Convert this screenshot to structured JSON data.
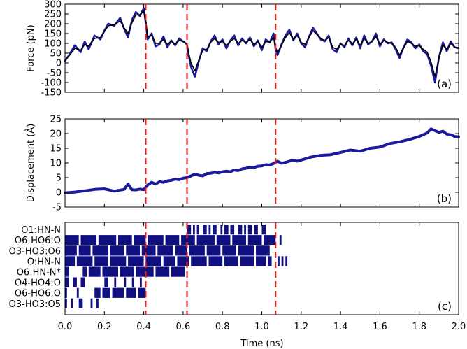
{
  "colors": {
    "raw": "#1a1a9c",
    "smooth": "#000000",
    "marker": "#e8231c",
    "hbond": "#101080",
    "frame": "#000000"
  },
  "x_axis": {
    "label": "Time (ns)",
    "range": [
      0.0,
      2.0
    ],
    "ticks": [
      "0.0",
      "0.2",
      "0.4",
      "0.6",
      "0.8",
      "1.0",
      "1.2",
      "1.4",
      "1.6",
      "1.8",
      "2.0"
    ]
  },
  "event_times": [
    0.41,
    0.62,
    1.07
  ],
  "chart_data": [
    {
      "id": "a",
      "tag": "(a)",
      "type": "line",
      "ylabel": "Force (pN)",
      "ylim": [
        -150,
        300
      ],
      "yticks": [
        "-150",
        "-100",
        "-50",
        "0",
        "50",
        "100",
        "150",
        "200",
        "250",
        "300"
      ],
      "series": [
        {
          "style": "raw",
          "x": [
            0.0,
            0.02,
            0.05,
            0.08,
            0.1,
            0.12,
            0.15,
            0.18,
            0.2,
            0.22,
            0.25,
            0.28,
            0.3,
            0.32,
            0.34,
            0.36,
            0.38,
            0.4,
            0.41,
            0.42,
            0.44,
            0.46,
            0.48,
            0.5,
            0.52,
            0.54,
            0.56,
            0.58,
            0.6,
            0.62,
            0.63,
            0.64,
            0.66,
            0.68,
            0.7,
            0.72,
            0.74,
            0.76,
            0.78,
            0.8,
            0.82,
            0.84,
            0.86,
            0.88,
            0.9,
            0.92,
            0.94,
            0.96,
            0.98,
            1.0,
            1.02,
            1.04,
            1.06,
            1.07,
            1.08,
            1.1,
            1.12,
            1.14,
            1.16,
            1.18,
            1.2,
            1.22,
            1.24,
            1.26,
            1.28,
            1.3,
            1.32,
            1.34,
            1.36,
            1.38,
            1.4,
            1.42,
            1.44,
            1.46,
            1.48,
            1.5,
            1.52,
            1.54,
            1.56,
            1.58,
            1.6,
            1.62,
            1.64,
            1.66,
            1.68,
            1.7,
            1.72,
            1.74,
            1.76,
            1.78,
            1.8,
            1.82,
            1.84,
            1.86,
            1.88,
            1.9,
            1.92,
            1.94,
            1.96,
            1.98,
            2.0
          ],
          "y": [
            10,
            40,
            90,
            55,
            110,
            70,
            140,
            120,
            165,
            200,
            190,
            230,
            175,
            130,
            220,
            260,
            240,
            280,
            205,
            120,
            150,
            85,
            95,
            135,
            80,
            115,
            90,
            125,
            110,
            95,
            30,
            -20,
            -70,
            10,
            75,
            60,
            110,
            140,
            95,
            120,
            75,
            115,
            140,
            90,
            125,
            100,
            130,
            85,
            115,
            65,
            120,
            105,
            150,
            70,
            40,
            95,
            140,
            170,
            115,
            150,
            100,
            80,
            135,
            180,
            150,
            120,
            110,
            140,
            70,
            55,
            100,
            80,
            125,
            90,
            130,
            75,
            140,
            95,
            110,
            150,
            85,
            120,
            100,
            105,
            70,
            25,
            80,
            120,
            105,
            75,
            95,
            60,
            45,
            -15,
            -100,
            30,
            105,
            60,
            110,
            80,
            75
          ]
        },
        {
          "style": "smooth",
          "x": [
            0.0,
            0.02,
            0.05,
            0.08,
            0.1,
            0.12,
            0.15,
            0.18,
            0.2,
            0.22,
            0.25,
            0.28,
            0.3,
            0.32,
            0.34,
            0.36,
            0.38,
            0.4,
            0.41,
            0.42,
            0.44,
            0.46,
            0.48,
            0.5,
            0.52,
            0.54,
            0.56,
            0.58,
            0.6,
            0.62,
            0.63,
            0.64,
            0.66,
            0.68,
            0.7,
            0.72,
            0.74,
            0.76,
            0.78,
            0.8,
            0.82,
            0.84,
            0.86,
            0.88,
            0.9,
            0.92,
            0.94,
            0.96,
            0.98,
            1.0,
            1.02,
            1.04,
            1.06,
            1.07,
            1.08,
            1.1,
            1.12,
            1.14,
            1.16,
            1.18,
            1.2,
            1.22,
            1.24,
            1.26,
            1.28,
            1.3,
            1.32,
            1.34,
            1.36,
            1.38,
            1.4,
            1.42,
            1.44,
            1.46,
            1.48,
            1.5,
            1.52,
            1.54,
            1.56,
            1.58,
            1.6,
            1.62,
            1.64,
            1.66,
            1.68,
            1.7,
            1.72,
            1.74,
            1.76,
            1.78,
            1.8,
            1.82,
            1.84,
            1.86,
            1.88,
            1.9,
            1.92,
            1.94,
            1.96,
            1.98,
            2.0
          ],
          "y": [
            15,
            35,
            75,
            65,
            95,
            85,
            125,
            130,
            160,
            190,
            195,
            215,
            180,
            150,
            205,
            245,
            245,
            265,
            215,
            135,
            140,
            100,
            100,
            120,
            95,
            110,
            95,
            115,
            110,
            95,
            45,
            0,
            -40,
            15,
            65,
            70,
            105,
            125,
            105,
            110,
            90,
            110,
            125,
            100,
            115,
            105,
            120,
            95,
            110,
            80,
            110,
            105,
            130,
            80,
            55,
            90,
            130,
            155,
            120,
            140,
            105,
            95,
            130,
            165,
            145,
            125,
            115,
            130,
            80,
            70,
            95,
            90,
            115,
            95,
            120,
            90,
            125,
            100,
            110,
            135,
            95,
            115,
            105,
            100,
            80,
            40,
            75,
            110,
            100,
            85,
            90,
            70,
            55,
            5,
            -70,
            25,
            90,
            70,
            100,
            80,
            78
          ]
        }
      ]
    },
    {
      "id": "b",
      "tag": "(b)",
      "type": "line",
      "ylabel": "Displacement (Å)",
      "ylim": [
        -5,
        25
      ],
      "yticks": [
        "-5",
        "0",
        "5",
        "10",
        "15",
        "20",
        "25"
      ],
      "series": [
        {
          "style": "raw",
          "x": [
            0.0,
            0.05,
            0.1,
            0.15,
            0.2,
            0.25,
            0.3,
            0.32,
            0.34,
            0.36,
            0.38,
            0.4,
            0.42,
            0.44,
            0.46,
            0.48,
            0.5,
            0.52,
            0.54,
            0.56,
            0.58,
            0.6,
            0.62,
            0.64,
            0.66,
            0.68,
            0.7,
            0.72,
            0.74,
            0.76,
            0.78,
            0.8,
            0.82,
            0.84,
            0.86,
            0.88,
            0.9,
            0.92,
            0.94,
            0.96,
            0.98,
            1.0,
            1.02,
            1.04,
            1.06,
            1.08,
            1.1,
            1.12,
            1.14,
            1.16,
            1.18,
            1.2,
            1.25,
            1.3,
            1.35,
            1.4,
            1.45,
            1.5,
            1.55,
            1.6,
            1.65,
            1.7,
            1.75,
            1.8,
            1.82,
            1.84,
            1.86,
            1.88,
            1.9,
            1.92,
            1.94,
            1.96,
            1.98,
            2.0
          ],
          "y": [
            -0.2,
            0.1,
            0.5,
            1.0,
            1.2,
            0.4,
            1.0,
            2.8,
            0.9,
            0.8,
            1.1,
            0.9,
            2.5,
            3.4,
            2.8,
            3.6,
            3.4,
            3.9,
            4.1,
            4.5,
            4.3,
            4.8,
            5.0,
            5.6,
            6.2,
            5.8,
            5.6,
            6.4,
            6.5,
            6.8,
            6.6,
            7.0,
            7.2,
            7.0,
            7.6,
            7.4,
            8.0,
            8.2,
            8.6,
            8.4,
            8.9,
            9.0,
            9.4,
            9.3,
            9.8,
            10.6,
            9.9,
            10.2,
            10.6,
            11.0,
            10.6,
            11.0,
            12.0,
            12.6,
            12.8,
            13.6,
            14.4,
            14.0,
            15.0,
            15.4,
            16.6,
            17.2,
            18.0,
            19.0,
            19.6,
            20.2,
            21.6,
            21.0,
            20.4,
            20.8,
            19.8,
            19.6,
            19.0,
            18.9
          ]
        }
      ]
    },
    {
      "id": "c",
      "tag": "(c)",
      "type": "heatmap",
      "categories": [
        "O1:HN-N",
        "O6-HO6:O",
        "O3-HO3:O6",
        "O:HN-N",
        "O6:HN-N*",
        "O4-HO4:O",
        "O6-HO6:O",
        "O3-HO3:O5"
      ],
      "rows": [
        {
          "segments": [
            [
              0.62,
              0.64
            ],
            [
              0.65,
              0.66
            ],
            [
              0.67,
              0.68
            ],
            [
              0.7,
              0.72
            ],
            [
              0.73,
              0.74
            ],
            [
              0.75,
              0.77
            ],
            [
              0.79,
              0.8
            ],
            [
              0.81,
              0.83
            ],
            [
              0.84,
              0.86
            ],
            [
              0.88,
              0.9
            ],
            [
              0.91,
              0.92
            ],
            [
              0.93,
              0.95
            ],
            [
              0.96,
              0.98
            ],
            [
              1.0,
              1.02
            ]
          ]
        },
        {
          "segments": [
            [
              0.0,
              0.07
            ],
            [
              0.08,
              0.16
            ],
            [
              0.17,
              0.26
            ],
            [
              0.27,
              0.34
            ],
            [
              0.35,
              0.41
            ],
            [
              0.42,
              0.5
            ],
            [
              0.51,
              0.58
            ],
            [
              0.59,
              0.66
            ],
            [
              0.67,
              0.76
            ],
            [
              0.77,
              0.84
            ],
            [
              0.85,
              0.92
            ],
            [
              0.93,
              1.0
            ],
            [
              1.01,
              1.07
            ],
            [
              1.09,
              1.1
            ]
          ]
        },
        {
          "segments": [
            [
              0.0,
              0.06
            ],
            [
              0.07,
              0.13
            ],
            [
              0.14,
              0.22
            ],
            [
              0.23,
              0.3
            ],
            [
              0.31,
              0.38
            ],
            [
              0.39,
              0.46
            ],
            [
              0.47,
              0.55
            ],
            [
              0.56,
              0.62
            ],
            [
              0.63,
              0.71
            ],
            [
              0.72,
              0.79
            ],
            [
              0.8,
              0.87
            ],
            [
              0.88,
              0.96
            ],
            [
              0.97,
              1.04
            ]
          ]
        },
        {
          "segments": [
            [
              0.0,
              0.05
            ],
            [
              0.06,
              0.14
            ],
            [
              0.15,
              0.22
            ],
            [
              0.23,
              0.31
            ],
            [
              0.32,
              0.4
            ],
            [
              0.41,
              0.49
            ],
            [
              0.5,
              0.56
            ],
            [
              0.57,
              0.63
            ],
            [
              0.64,
              0.72
            ],
            [
              0.73,
              0.8
            ],
            [
              0.81,
              0.88
            ],
            [
              0.89,
              0.96
            ],
            [
              0.97,
              1.02
            ],
            [
              1.03,
              1.05
            ],
            [
              1.08,
              1.09
            ],
            [
              1.1,
              1.11
            ],
            [
              1.12,
              1.13
            ]
          ]
        },
        {
          "segments": [
            [
              0.0,
              0.02
            ],
            [
              0.09,
              0.11
            ],
            [
              0.12,
              0.18
            ],
            [
              0.19,
              0.27
            ],
            [
              0.28,
              0.35
            ],
            [
              0.36,
              0.45
            ],
            [
              0.46,
              0.53
            ],
            [
              0.54,
              0.61
            ]
          ]
        },
        {
          "segments": [
            [
              0.0,
              0.02
            ],
            [
              0.04,
              0.06
            ],
            [
              0.08,
              0.1
            ],
            [
              0.2,
              0.22
            ],
            [
              0.25,
              0.26
            ],
            [
              0.3,
              0.31
            ],
            [
              0.34,
              0.35
            ],
            [
              0.38,
              0.39
            ]
          ]
        },
        {
          "segments": [
            [
              0.0,
              0.01
            ],
            [
              0.06,
              0.07
            ],
            [
              0.15,
              0.18
            ],
            [
              0.19,
              0.23
            ],
            [
              0.24,
              0.3
            ],
            [
              0.31,
              0.36
            ],
            [
              0.37,
              0.41
            ]
          ]
        },
        {
          "segments": [
            [
              0.0,
              0.01
            ],
            [
              0.03,
              0.04
            ],
            [
              0.07,
              0.09
            ],
            [
              0.13,
              0.14
            ],
            [
              0.16,
              0.17
            ]
          ]
        }
      ]
    }
  ]
}
